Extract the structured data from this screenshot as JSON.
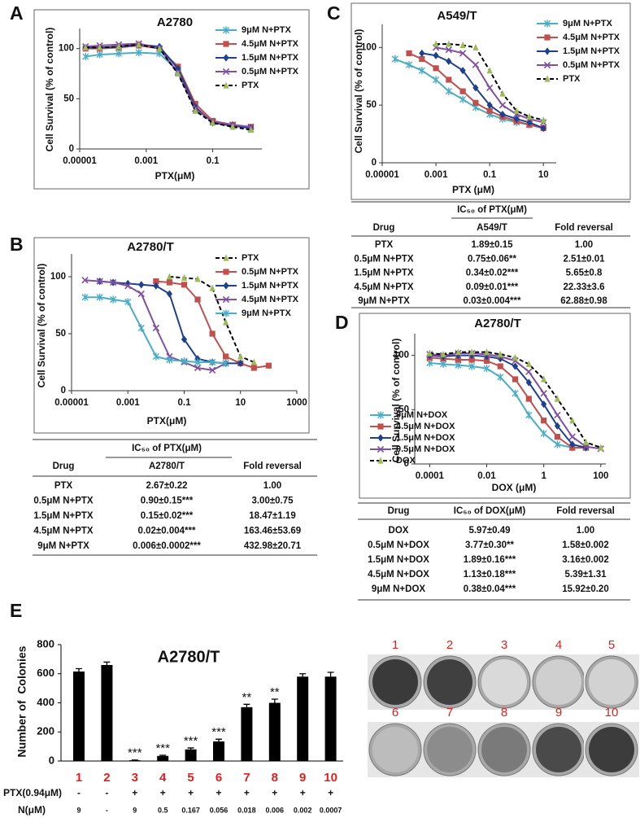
{
  "panel_labels": [
    "A",
    "B",
    "C",
    "D",
    "E"
  ],
  "chart_data": [
    {
      "type": "line",
      "title": "A2780",
      "x_label": "PTX(μM)",
      "y_label": "Cell Survival (% of control)",
      "x_scale": "log",
      "xlim": [
        1e-05,
        3
      ],
      "xticks": [
        1e-05,
        0.001,
        0.1
      ],
      "ylim": [
        0,
        120
      ],
      "yticks": [
        0,
        50,
        100
      ],
      "legend": "upper right",
      "x": [
        1.5e-05,
        4e-05,
        0.00015,
        0.0006,
        0.0025,
        0.009,
        0.03,
        0.1,
        0.4,
        1.4
      ],
      "series": [
        {
          "name": "9μM N+PTX",
          "color": "#4bacc6",
          "marker": "star",
          "values": [
            92,
            94,
            95,
            96,
            95,
            78,
            40,
            27,
            24,
            20
          ]
        },
        {
          "name": "4.5μM N+PTX",
          "color": "#c0504d",
          "marker": "square",
          "values": [
            100,
            100,
            101,
            103,
            100,
            82,
            45,
            28,
            24,
            22
          ]
        },
        {
          "name": "1.5μM N+PTX",
          "color": "#1f3f8f",
          "marker": "diamond",
          "values": [
            101,
            101,
            102,
            104,
            102,
            80,
            42,
            26,
            23,
            21
          ]
        },
        {
          "name": "0.5μM N+PTX",
          "color": "#7f4fa0",
          "marker": "x",
          "values": [
            102,
            103,
            104,
            105,
            100,
            76,
            40,
            27,
            24,
            22
          ]
        },
        {
          "name": "PTX",
          "color": "#000000",
          "marker_color": "#9bbb59",
          "marker": "triangle",
          "dash": true,
          "values": [
            101,
            101,
            102,
            104,
            100,
            75,
            38,
            26,
            22,
            19
          ]
        }
      ]
    },
    {
      "type": "line",
      "title": "A2780/T",
      "x_label": "PTX(μM)",
      "y_label": "Cell Survival (% of control)",
      "x_scale": "log",
      "xlim": [
        1e-05,
        1000
      ],
      "xticks": [
        1e-05,
        0.001,
        0.1,
        10,
        1000
      ],
      "ylim": [
        0,
        120
      ],
      "yticks": [
        0,
        50,
        100
      ],
      "legend": "upper right",
      "x": [
        3e-05,
        0.0001,
        0.0003,
        0.001,
        0.003,
        0.01,
        0.03,
        0.1,
        0.3,
        1,
        3,
        10,
        30,
        100
      ],
      "series": [
        {
          "name": "PTX",
          "color": "#000000",
          "marker_color": "#9bbb59",
          "marker": "triangle",
          "dash": true,
          "values": [
            null,
            null,
            null,
            null,
            null,
            null,
            100,
            99,
            98,
            90,
            60,
            30,
            25,
            null
          ]
        },
        {
          "name": "0.5μM N+PTX",
          "color": "#c0504d",
          "marker": "square",
          "values": [
            null,
            null,
            null,
            null,
            null,
            96,
            95,
            93,
            80,
            50,
            30,
            24,
            20,
            22
          ]
        },
        {
          "name": "1.5μM N+PTX",
          "color": "#1f3f8f",
          "marker": "diamond",
          "values": [
            null,
            96,
            95,
            94,
            93,
            92,
            85,
            45,
            28,
            25,
            24,
            24,
            null,
            null
          ]
        },
        {
          "name": "4.5μM N+PTX",
          "color": "#7f4fa0",
          "marker": "x",
          "values": [
            97,
            96,
            95,
            92,
            85,
            55,
            30,
            25,
            20,
            18,
            24,
            null,
            null,
            null
          ]
        },
        {
          "name": "9μM N+PTX",
          "color": "#4bacc6",
          "marker": "star",
          "values": [
            82,
            82,
            80,
            78,
            55,
            30,
            27,
            26,
            25,
            25,
            24,
            null,
            null,
            null
          ]
        }
      ]
    },
    {
      "type": "line",
      "title": "A549/T",
      "x_label": "PTX (μM)",
      "y_label": "Cell Survival (% of control)",
      "x_scale": "log",
      "xlim": [
        1e-05,
        30
      ],
      "xticks": [
        1e-05,
        0.001,
        0.1,
        10
      ],
      "ylim": [
        0,
        120
      ],
      "yticks": [
        0,
        50,
        100
      ],
      "legend": "upper right",
      "x": [
        3e-05,
        0.0001,
        0.0003,
        0.001,
        0.003,
        0.01,
        0.03,
        0.1,
        0.3,
        1,
        3,
        10
      ],
      "series": [
        {
          "name": "9μM N+PTX",
          "color": "#4bacc6",
          "marker": "star",
          "values": [
            90,
            85,
            80,
            72,
            62,
            55,
            48,
            42,
            38,
            35,
            33,
            null
          ]
        },
        {
          "name": "4.5μM N+PTX",
          "color": "#c0504d",
          "marker": "square",
          "values": [
            null,
            95,
            90,
            82,
            72,
            62,
            52,
            45,
            40,
            36,
            33,
            30
          ]
        },
        {
          "name": "1.5μM N+PTX",
          "color": "#1f3f8f",
          "marker": "diamond",
          "values": [
            null,
            null,
            95,
            93,
            88,
            80,
            65,
            50,
            42,
            38,
            35,
            30
          ]
        },
        {
          "name": "0.5μM N+PTX",
          "color": "#7f4fa0",
          "marker": "x",
          "values": [
            null,
            null,
            null,
            100,
            98,
            95,
            85,
            65,
            50,
            42,
            38,
            35
          ]
        },
        {
          "name": "PTX",
          "color": "#000000",
          "marker_color": "#9bbb59",
          "marker": "triangle",
          "dash": true,
          "values": [
            null,
            null,
            null,
            103,
            103,
            102,
            100,
            80,
            60,
            45,
            40,
            37
          ]
        }
      ]
    },
    {
      "type": "line",
      "title": "A2780/T",
      "x_label": "DOX (μM)",
      "y_label": "Cell Survival (% of control)",
      "x_scale": "log",
      "xlim": [
        3e-05,
        150
      ],
      "xticks": [
        0.0001,
        0.01,
        1,
        100
      ],
      "ylim": [
        0,
        120
      ],
      "yticks": [
        0,
        50,
        100
      ],
      "legend": "lower left",
      "x": [
        0.0001,
        0.0003,
        0.001,
        0.003,
        0.01,
        0.03,
        0.1,
        0.3,
        1,
        3,
        10,
        30,
        100
      ],
      "series": [
        {
          "name": "9μM N+DOX",
          "color": "#4bacc6",
          "marker": "star",
          "values": [
            93,
            92,
            91,
            90,
            88,
            80,
            65,
            45,
            28,
            18,
            15,
            15,
            null
          ]
        },
        {
          "name": "4.5μM N+DOX",
          "color": "#c0504d",
          "marker": "square",
          "values": [
            98,
            97,
            96,
            96,
            95,
            90,
            78,
            60,
            40,
            25,
            15,
            15,
            null
          ]
        },
        {
          "name": "1.5μM N+DOX",
          "color": "#1f3f8f",
          "marker": "diamond",
          "values": [
            100,
            99,
            100,
            100,
            99,
            97,
            90,
            75,
            55,
            35,
            18,
            15,
            null
          ]
        },
        {
          "name": "0.5μM N+DOX",
          "color": "#7f4fa0",
          "marker": "x",
          "values": [
            101,
            100,
            102,
            102,
            101,
            99,
            95,
            85,
            65,
            45,
            25,
            16,
            14
          ]
        },
        {
          "name": "DOX",
          "color": "#000000",
          "marker_color": "#9bbb59",
          "marker": "triangle",
          "dash": true,
          "values": [
            102,
            101,
            103,
            103,
            103,
            101,
            98,
            92,
            78,
            60,
            40,
            20,
            15
          ]
        }
      ]
    },
    {
      "type": "bar",
      "title": "A2780/T",
      "y_label": "Number of  Colonies",
      "ylim": [
        0,
        800
      ],
      "yticks": [
        0,
        200,
        400,
        600,
        800
      ],
      "color": "#000000",
      "category_color": "#e02020",
      "categories": [
        "1",
        "2",
        "3",
        "4",
        "5",
        "6",
        "7",
        "8",
        "9",
        "10"
      ],
      "values": [
        615,
        660,
        5,
        35,
        80,
        135,
        370,
        400,
        580,
        580
      ],
      "errors": [
        20,
        20,
        2,
        5,
        10,
        15,
        20,
        25,
        20,
        30
      ],
      "significance": [
        null,
        null,
        "***",
        "***",
        "***",
        "***",
        "**",
        "**",
        null,
        null
      ],
      "conditions": [
        {
          "label": "PTX(0.94μM)",
          "values": [
            "-",
            "-",
            "+",
            "+",
            "+",
            "+",
            "+",
            "+",
            "+",
            "+"
          ]
        },
        {
          "label": "N(μM)",
          "values": [
            "9",
            "-",
            "9",
            "0.5",
            "0.167",
            "0.056",
            "0.018",
            "0.006",
            "0.002",
            "0.0007"
          ]
        }
      ]
    }
  ],
  "tables": [
    {
      "group": "IC₅₀ of PTX(μM)",
      "columns": [
        "Drug",
        "A2780/T",
        "Fold reversal"
      ],
      "rows": [
        [
          "PTX",
          "2.67±0.22",
          "1.00"
        ],
        [
          "0.5μM N+PTX",
          "0.90±0.15***",
          "3.00±0.75"
        ],
        [
          "1.5μM N+PTX",
          "0.15±0.02***",
          "18.47±1.19"
        ],
        [
          "4.5μM N+PTX",
          "0.02±0.004***",
          "163.46±53.69"
        ],
        [
          "9μM N+PTX",
          "0.006±0.0002***",
          "432.98±20.71"
        ]
      ]
    },
    {
      "group": "IC₅₀ of PTX(μM)",
      "columns": [
        "Drug",
        "A549/T",
        "Fold reversal"
      ],
      "rows": [
        [
          "PTX",
          "1.89±0.15",
          "1.00"
        ],
        [
          "0.5μM N+PTX",
          "0.75±0.06**",
          "2.51±0.01"
        ],
        [
          "1.5μM N+PTX",
          "0.34±0.02***",
          "5.65±0.8"
        ],
        [
          "4.5μM N+PTX",
          "0.09±0.01***",
          "22.33±3.6"
        ],
        [
          "9μM N+PTX",
          "0.03±0.004***",
          "62.88±0.98"
        ]
      ]
    },
    {
      "columns": [
        "Drug",
        "IC₅₀ of DOX(μM)",
        "Fold reversal"
      ],
      "rows": [
        [
          "DOX",
          "5.97±0.49",
          "1.00"
        ],
        [
          "0.5μM N+DOX",
          "3.77±0.30**",
          "1.58±0.002"
        ],
        [
          "1.5μM N+DOX",
          "1.89±0.16***",
          "3.16±0.002"
        ],
        [
          "4.5μM N+DOX",
          "1.13±0.18***",
          "5.39±1.31"
        ],
        [
          "9μM N+DOX",
          "0.38±0.04***",
          "15.92±0.20"
        ]
      ]
    }
  ],
  "colonies": {
    "labels": [
      "1",
      "2",
      "3",
      "4",
      "5",
      "6",
      "7",
      "8",
      "9",
      "10"
    ]
  }
}
